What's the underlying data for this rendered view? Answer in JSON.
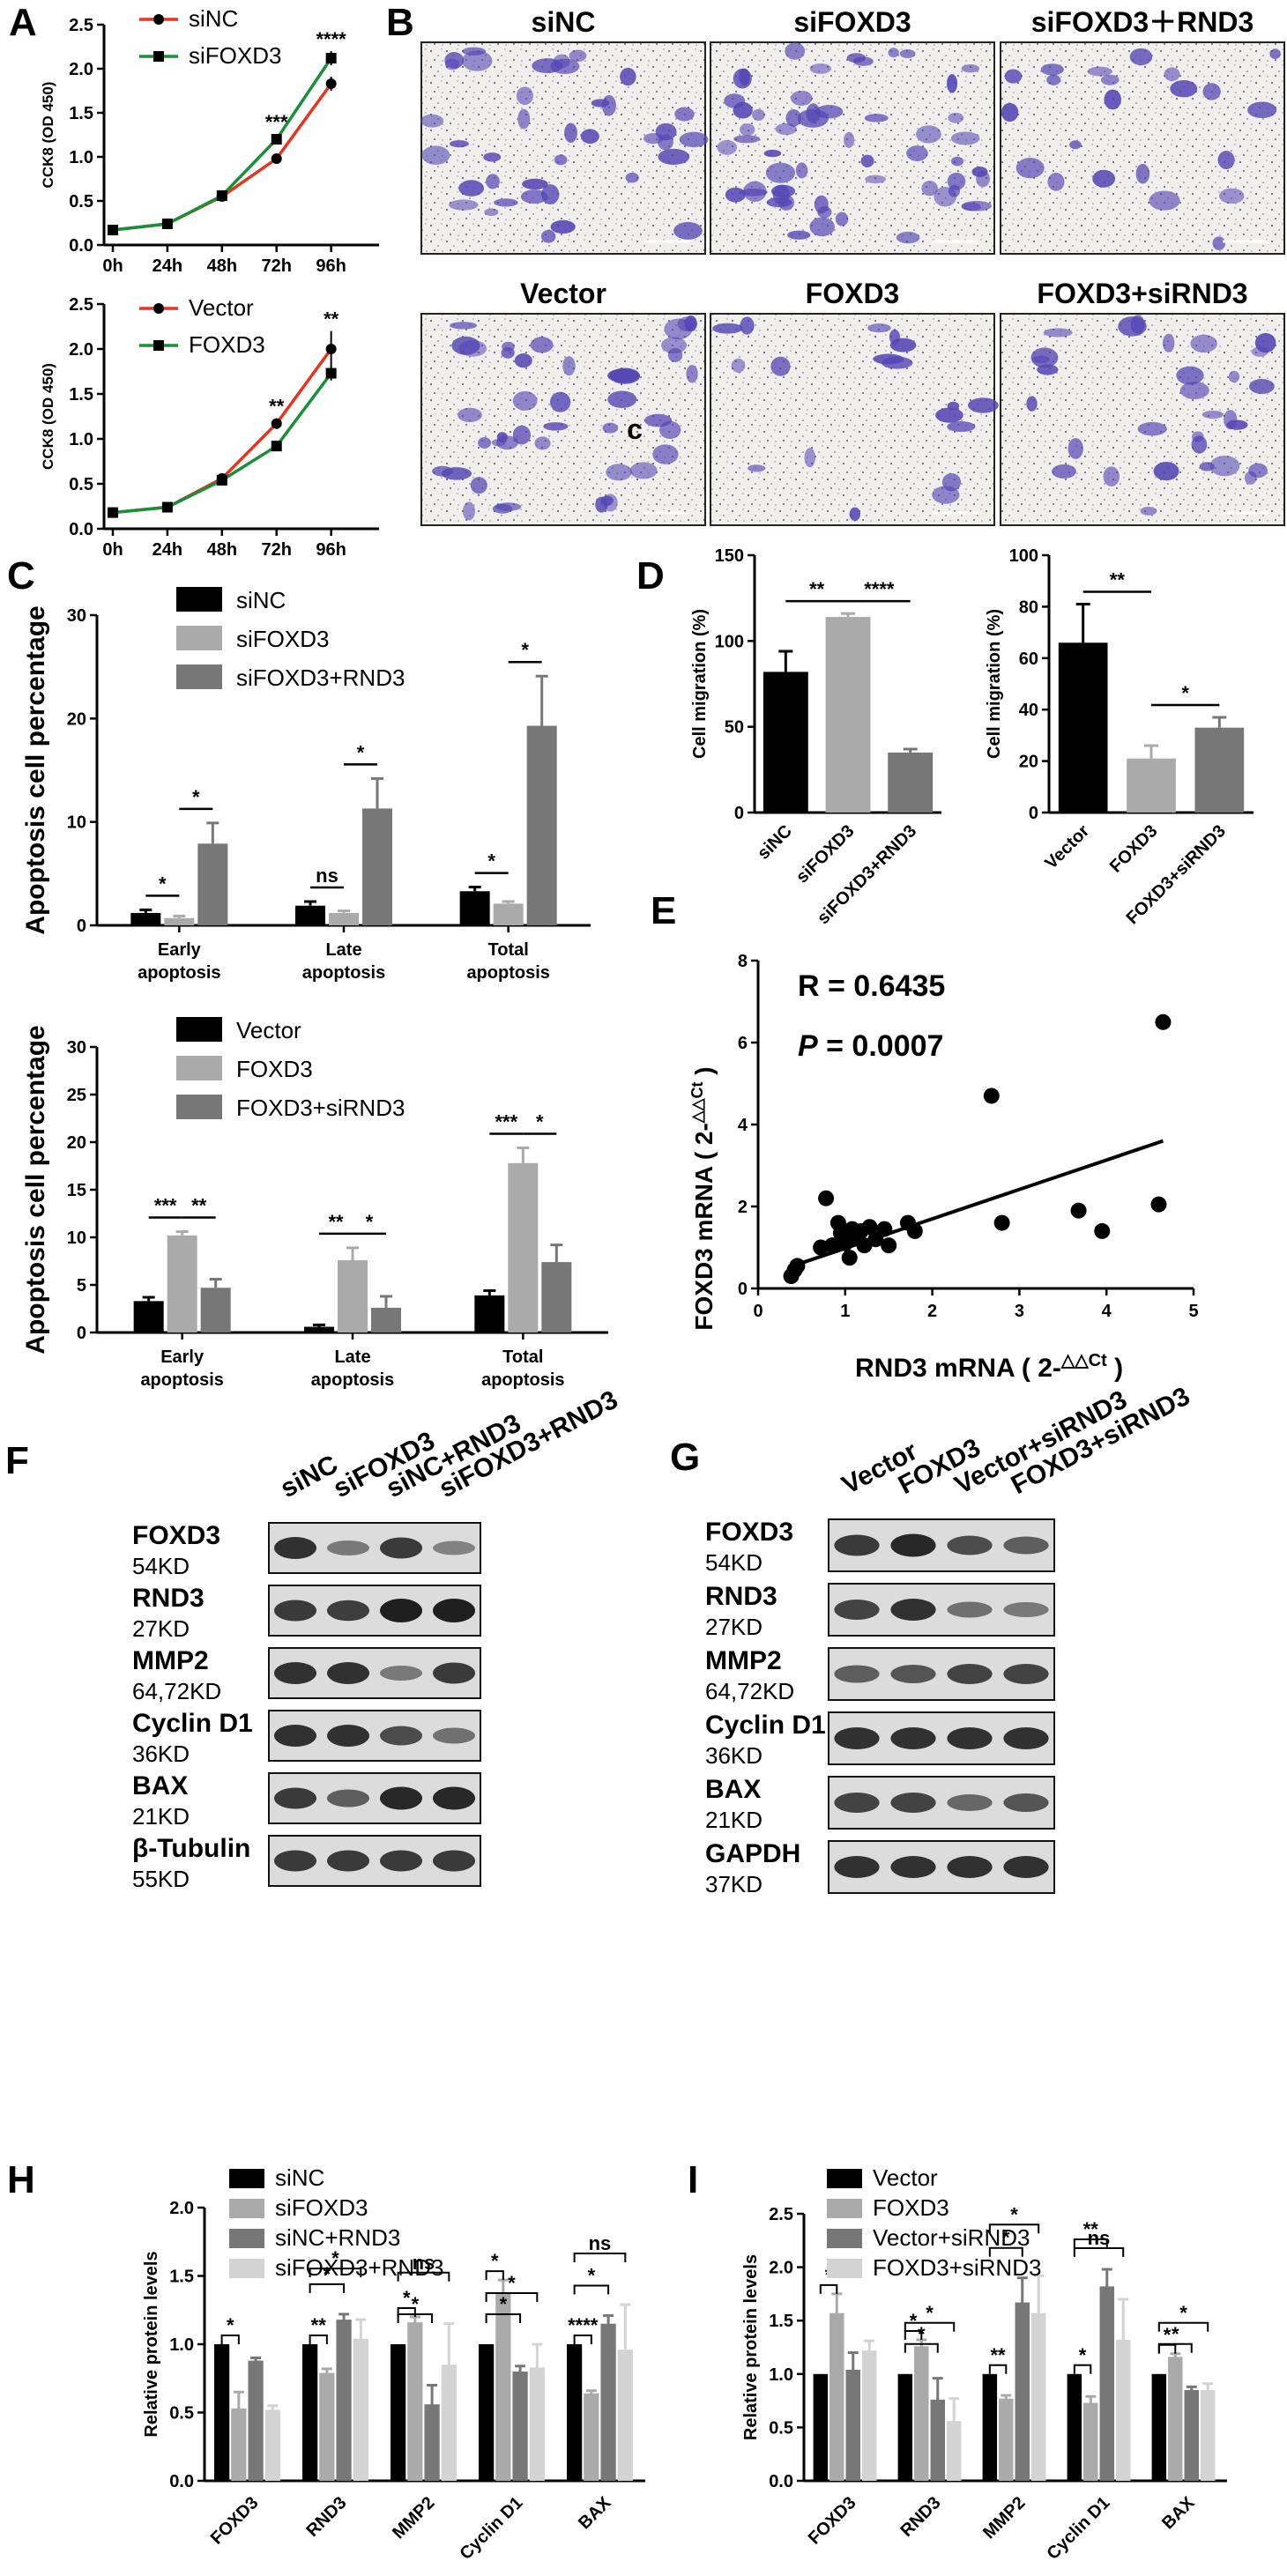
{
  "panels": {
    "A": {
      "letter": "A",
      "top": {
        "ylabel": "CCK8 (OD 450)",
        "legend": [
          "siNC",
          "siFOXD3"
        ],
        "chart_data": {
          "type": "line",
          "x": [
            "0h",
            "24h",
            "48h",
            "72h",
            "96h"
          ],
          "yticks": [
            "0.0",
            "0.5",
            "1.0",
            "1.5",
            "2.0",
            "2.5"
          ],
          "ylim": [
            0,
            2.5
          ],
          "series": [
            {
              "name": "siNC",
              "values": [
                0.17,
                0.24,
                0.55,
                0.98,
                1.83
              ],
              "errors": [
                0,
                0.02,
                0.02,
                0.04,
                0.08
              ],
              "color": "#e8331f"
            },
            {
              "name": "siFOXD3",
              "values": [
                0.17,
                0.24,
                0.56,
                1.2,
                2.12
              ],
              "errors": [
                0,
                0.02,
                0.02,
                0.06,
                0.08
              ],
              "color": "#1a8f3a"
            }
          ],
          "annotations": [
            {
              "x": "72h",
              "text": "***"
            },
            {
              "x": "96h",
              "text": "****"
            }
          ]
        }
      },
      "bottom": {
        "ylabel": "CCK8 (OD 450)",
        "legend": [
          "Vector",
          "FOXD3"
        ],
        "chart_data": {
          "type": "line",
          "x": [
            "0h",
            "24h",
            "48h",
            "72h",
            "96h"
          ],
          "yticks": [
            "0.0",
            "0.5",
            "1.0",
            "1.5",
            "2.0",
            "2.5"
          ],
          "ylim": [
            0,
            2.5
          ],
          "series": [
            {
              "name": "Vector",
              "values": [
                0.18,
                0.24,
                0.56,
                1.17,
                2.0
              ],
              "errors": [
                0,
                0.02,
                0.03,
                0.06,
                0.2
              ],
              "color": "#e8331f"
            },
            {
              "name": "FOXD3",
              "values": [
                0.18,
                0.24,
                0.54,
                0.92,
                1.73
              ],
              "errors": [
                0,
                0.02,
                0.02,
                0.04,
                0.08
              ],
              "color": "#1a8f3a"
            }
          ],
          "annotations": [
            {
              "x": "72h",
              "text": "**"
            },
            {
              "x": "96h",
              "text": "**"
            }
          ]
        }
      }
    },
    "B": {
      "letter": "B",
      "titles": [
        "siNC",
        "siFOXD3",
        "siFOXD3＋RND3",
        "Vector",
        "FOXD3",
        "FOXD3+siRND3"
      ],
      "inset_label": "c"
    },
    "C": {
      "letter": "C",
      "top": {
        "ylabel": "Apoptosis cell percentage",
        "legend": [
          "siNC",
          "siFOXD3",
          "siFOXD3+RND3"
        ],
        "chart_data": {
          "type": "bar",
          "categories": [
            "Early apoptosis",
            "Late apoptosis",
            "Total apoptosis"
          ],
          "category_lines": [
            [
              "Early",
              "apoptosis"
            ],
            [
              "Late",
              "apoptosis"
            ],
            [
              "Total",
              "apoptosis"
            ]
          ],
          "yticks": [
            "0",
            "10",
            "20",
            "30"
          ],
          "ylim": [
            0,
            30
          ],
          "series": [
            {
              "name": "siNC",
              "values": [
                1.2,
                1.9,
                3.3
              ],
              "errors": [
                0.3,
                0.4,
                0.4
              ],
              "color": "#000000"
            },
            {
              "name": "siFOXD3",
              "values": [
                0.7,
                1.2,
                2.1
              ],
              "errors": [
                0.2,
                0.2,
                0.2
              ],
              "color": "#aaaaaa"
            },
            {
              "name": "siFOXD3+RND3",
              "values": [
                7.9,
                11.3,
                19.3
              ],
              "errors": [
                2.0,
                2.9,
                4.8
              ],
              "color": "#777777"
            }
          ],
          "annotations": [
            {
              "category": 0,
              "from": 0,
              "to": 1,
              "text": "*"
            },
            {
              "category": 0,
              "from": 1,
              "to": 2,
              "text": "*"
            },
            {
              "category": 1,
              "from": 0,
              "to": 1,
              "text": "ns"
            },
            {
              "category": 1,
              "from": 1,
              "to": 2,
              "text": "*"
            },
            {
              "category": 2,
              "from": 0,
              "to": 1,
              "text": "*"
            },
            {
              "category": 2,
              "from": 1,
              "to": 2,
              "text": "*"
            }
          ]
        }
      },
      "bottom": {
        "ylabel": "Apoptosis cell percentage",
        "legend": [
          "Vector",
          "FOXD3",
          "FOXD3+siRND3"
        ],
        "chart_data": {
          "type": "bar",
          "categories": [
            "Early apoptosis",
            "Late apoptosis",
            "Total apoptosis"
          ],
          "category_lines": [
            [
              "Early",
              "apoptosis"
            ],
            [
              "Late",
              "apoptosis"
            ],
            [
              "Total",
              "apoptosis"
            ]
          ],
          "yticks": [
            "0",
            "5",
            "10",
            "15",
            "20",
            "25",
            "30"
          ],
          "ylim": [
            0,
            30
          ],
          "series": [
            {
              "name": "Vector",
              "values": [
                3.3,
                0.6,
                3.9
              ],
              "errors": [
                0.4,
                0.2,
                0.5
              ],
              "color": "#000000"
            },
            {
              "name": "FOXD3",
              "values": [
                10.2,
                7.6,
                17.8
              ],
              "errors": [
                0.4,
                1.3,
                1.6
              ],
              "color": "#aaaaaa"
            },
            {
              "name": "FOXD3+siRND3",
              "values": [
                4.7,
                2.6,
                7.4
              ],
              "errors": [
                0.9,
                1.2,
                1.8
              ],
              "color": "#777777"
            }
          ],
          "annotations": [
            {
              "category": 0,
              "from": 0,
              "to": 1,
              "text": "***"
            },
            {
              "category": 0,
              "from": 1,
              "to": 2,
              "text": "**"
            },
            {
              "category": 1,
              "from": 0,
              "to": 1,
              "text": "**"
            },
            {
              "category": 1,
              "from": 1,
              "to": 2,
              "text": "*"
            },
            {
              "category": 2,
              "from": 0,
              "to": 1,
              "text": "***"
            },
            {
              "category": 2,
              "from": 1,
              "to": 2,
              "text": "*"
            }
          ]
        }
      }
    },
    "D": {
      "letter": "D",
      "left": {
        "ylabel": "Cell migration (%)",
        "chart_data": {
          "type": "bar",
          "categories": [
            "siNC",
            "siFOXD3",
            "siFOXD3+RND3"
          ],
          "yticks": [
            "0",
            "50",
            "100",
            "150"
          ],
          "ylim": [
            0,
            150
          ],
          "values": [
            82,
            114,
            35
          ],
          "errors": [
            12,
            2,
            2
          ],
          "colors": [
            "#000000",
            "#aaaaaa",
            "#777777"
          ],
          "annotations": [
            {
              "from": 0,
              "to": 1,
              "text": "**"
            },
            {
              "from": 1,
              "to": 2,
              "text": "****"
            }
          ]
        }
      },
      "right": {
        "ylabel": "Cell migration (%)",
        "chart_data": {
          "type": "bar",
          "categories": [
            "Vector",
            "FOXD3",
            "FOXD3+siRND3"
          ],
          "yticks": [
            "0",
            "20",
            "40",
            "60",
            "80",
            "100"
          ],
          "ylim": [
            0,
            100
          ],
          "values": [
            66,
            21,
            33
          ],
          "errors": [
            15,
            5,
            4
          ],
          "colors": [
            "#000000",
            "#aaaaaa",
            "#777777"
          ],
          "annotations": [
            {
              "from": 0,
              "to": 1,
              "text": "**"
            },
            {
              "from": 1,
              "to": 2,
              "text": "*"
            }
          ]
        }
      }
    },
    "E": {
      "letter": "E",
      "r_label": "R = 0.6435",
      "p_label_italic": "P",
      "p_label_rest": " = 0.0007",
      "xlabel_main": "RND3 mRNA ( 2-",
      "xlabel_sup": "△△Ct",
      "xlabel_end": " )",
      "ylabel_main": "FOXD3 mRNA ( 2-",
      "ylabel_sup": "△△Ct",
      "ylabel_end": " )",
      "chart_data": {
        "type": "scatter",
        "xticks": [
          "0",
          "1",
          "2",
          "3",
          "4",
          "5"
        ],
        "yticks": [
          "0",
          "2",
          "4",
          "6",
          "8"
        ],
        "xlim": [
          0,
          5
        ],
        "ylim": [
          0,
          8
        ],
        "points": [
          [
            0.38,
            0.3
          ],
          [
            0.42,
            0.45
          ],
          [
            0.45,
            0.55
          ],
          [
            0.72,
            1.0
          ],
          [
            0.78,
            2.2
          ],
          [
            0.85,
            1.05
          ],
          [
            0.92,
            1.6
          ],
          [
            0.95,
            1.35
          ],
          [
            1.0,
            1.1
          ],
          [
            1.05,
            0.75
          ],
          [
            1.08,
            1.45
          ],
          [
            1.12,
            1.25
          ],
          [
            1.18,
            1.4
          ],
          [
            1.22,
            1.05
          ],
          [
            1.28,
            1.5
          ],
          [
            1.35,
            1.2
          ],
          [
            1.45,
            1.45
          ],
          [
            1.5,
            1.05
          ],
          [
            1.72,
            1.6
          ],
          [
            1.8,
            1.4
          ],
          [
            2.68,
            4.7
          ],
          [
            2.8,
            1.6
          ],
          [
            3.68,
            1.9
          ],
          [
            3.95,
            1.4
          ],
          [
            4.6,
            2.05
          ],
          [
            4.65,
            6.5
          ]
        ],
        "fit": [
          [
            0.4,
            0.55
          ],
          [
            4.65,
            3.6
          ]
        ]
      }
    },
    "F": {
      "letter": "F",
      "lanes": [
        "siNC",
        "siFOXD3",
        "siNC+RND3",
        "siFOXD3+RND3"
      ],
      "rows": [
        {
          "name": "FOXD3",
          "kd": "54KD",
          "intensities": [
            0.85,
            0.45,
            0.8,
            0.4
          ]
        },
        {
          "name": "RND3",
          "kd": "27KD",
          "intensities": [
            0.8,
            0.78,
            0.95,
            0.95
          ]
        },
        {
          "name": "MMP2",
          "kd": "64,72KD",
          "intensities": [
            0.85,
            0.85,
            0.45,
            0.8
          ]
        },
        {
          "name": "Cyclin D1",
          "kd": "36KD",
          "intensities": [
            0.85,
            0.85,
            0.7,
            0.5
          ]
        },
        {
          "name": "BAX",
          "kd": "21KD",
          "intensities": [
            0.8,
            0.6,
            0.9,
            0.9
          ]
        },
        {
          "name": "β-Tubulin",
          "kd": "55KD",
          "intensities": [
            0.8,
            0.8,
            0.8,
            0.8
          ]
        }
      ]
    },
    "G": {
      "letter": "G",
      "lanes": [
        "Vector",
        "FOXD3",
        "Vector+siRND3",
        "FOXD3+siRND3"
      ],
      "rows": [
        {
          "name": "FOXD3",
          "kd": "54KD",
          "intensities": [
            0.8,
            0.9,
            0.7,
            0.6
          ]
        },
        {
          "name": "RND3",
          "kd": "27KD",
          "intensities": [
            0.75,
            0.85,
            0.5,
            0.45
          ]
        },
        {
          "name": "MMP2",
          "kd": "64,72KD",
          "intensities": [
            0.6,
            0.65,
            0.75,
            0.75
          ]
        },
        {
          "name": "Cyclin D1",
          "kd": "36KD",
          "intensities": [
            0.85,
            0.85,
            0.85,
            0.85
          ]
        },
        {
          "name": "BAX",
          "kd": "21KD",
          "intensities": [
            0.75,
            0.75,
            0.55,
            0.65
          ]
        },
        {
          "name": "GAPDH",
          "kd": "37KD",
          "intensities": [
            0.85,
            0.85,
            0.85,
            0.85
          ]
        }
      ]
    },
    "H": {
      "letter": "H",
      "ylabel": "Relative protein levels",
      "legend": [
        "siNC",
        "siFOXD3",
        "siNC+RND3",
        "siFOXD3+RND3"
      ],
      "chart_data": {
        "type": "bar",
        "categories": [
          "FOXD3",
          "RND3",
          "MMP2",
          "Cyclin D1",
          "BAX"
        ],
        "yticks": [
          "0.0",
          "0.5",
          "1.0",
          "1.5",
          "2.0"
        ],
        "ylim": [
          0,
          2.0
        ],
        "series": [
          {
            "name": "siNC",
            "values": [
              1.0,
              1.0,
              1.0,
              1.0,
              1.0
            ],
            "errors": [
              0,
              0,
              0,
              0,
              0
            ],
            "color": "#000000"
          },
          {
            "name": "siFOXD3",
            "values": [
              0.53,
              0.79,
              1.16,
              1.37,
              0.64
            ],
            "errors": [
              0.12,
              0.03,
              0.04,
              0.1,
              0.02
            ],
            "color": "#aaaaaa"
          },
          {
            "name": "siNC+RND3",
            "values": [
              0.88,
              1.18,
              0.56,
              0.8,
              1.15
            ],
            "errors": [
              0.02,
              0.04,
              0.14,
              0.04,
              0.06
            ],
            "color": "#777777"
          },
          {
            "name": "siFOXD3+RND3",
            "values": [
              0.52,
              1.04,
              0.85,
              0.83,
              0.96
            ],
            "errors": [
              0.03,
              0.14,
              0.3,
              0.17,
              0.33
            ],
            "color": "#d3d3d3"
          }
        ],
        "annotations": [
          "*",
          "**",
          "*",
          "*",
          "*",
          "*",
          "ns",
          "*",
          "*",
          "*",
          "****",
          "*",
          "ns"
        ]
      }
    },
    "I": {
      "letter": "I",
      "ylabel": "Relative protein levels",
      "legend": [
        "Vector",
        "FOXD3",
        "Vector+siRND3",
        "FOXD3+siRND3"
      ],
      "chart_data": {
        "type": "bar",
        "categories": [
          "FOXD3",
          "RND3",
          "MMP2",
          "Cyclin D1",
          "BAX"
        ],
        "yticks": [
          "0.0",
          "0.5",
          "1.0",
          "1.5",
          "2.0",
          "2.5"
        ],
        "ylim": [
          0,
          2.5
        ],
        "series": [
          {
            "name": "Vector",
            "values": [
              1.0,
              1.0,
              1.0,
              1.0,
              1.0
            ],
            "errors": [
              0,
              0,
              0,
              0,
              0
            ],
            "color": "#000000"
          },
          {
            "name": "FOXD3",
            "values": [
              1.57,
              1.26,
              0.77,
              0.73,
              1.16
            ],
            "errors": [
              0.18,
              0.06,
              0.03,
              0.06,
              0.03
            ],
            "color": "#aaaaaa"
          },
          {
            "name": "Vector+siRND3",
            "values": [
              1.04,
              0.76,
              1.67,
              1.82,
              0.85
            ],
            "errors": [
              0.16,
              0.2,
              0.23,
              0.16,
              0.03
            ],
            "color": "#777777"
          },
          {
            "name": "FOXD3+siRND3",
            "values": [
              1.22,
              0.56,
              1.57,
              1.32,
              0.85
            ],
            "errors": [
              0.09,
              0.21,
              0.35,
              0.38,
              0.06
            ],
            "color": "#d3d3d3"
          }
        ],
        "annotations": [
          "*",
          "*",
          "*",
          "*",
          "**",
          "*",
          "*",
          "*",
          "**",
          "ns",
          "*",
          "*",
          "*"
        ]
      }
    }
  }
}
